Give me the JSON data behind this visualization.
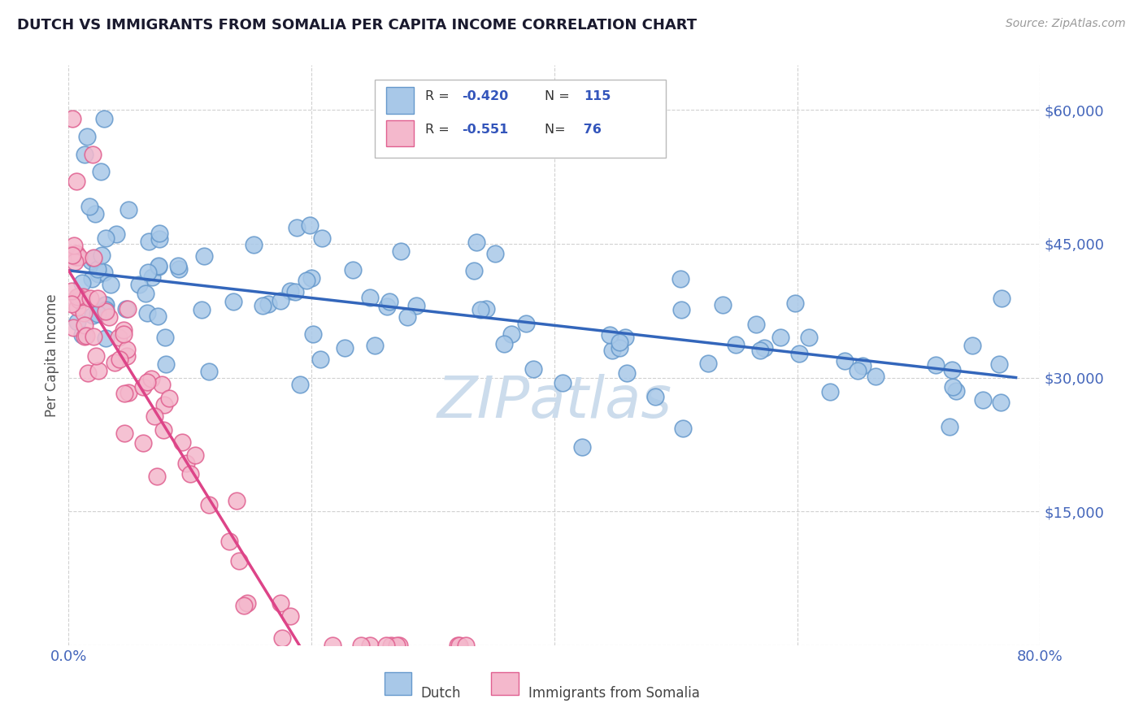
{
  "title": "DUTCH VS IMMIGRANTS FROM SOMALIA PER CAPITA INCOME CORRELATION CHART",
  "source": "Source: ZipAtlas.com",
  "ylabel": "Per Capita Income",
  "y_ticks": [
    0,
    15000,
    30000,
    45000,
    60000
  ],
  "y_tick_labels": [
    "",
    "$15,000",
    "$30,000",
    "$45,000",
    "$60,000"
  ],
  "x_range": [
    0.0,
    80.0
  ],
  "y_range": [
    0,
    65000
  ],
  "blue_color": "#a8c8e8",
  "blue_edge_color": "#6699cc",
  "pink_color": "#f4b8cc",
  "pink_edge_color": "#e06090",
  "blue_line_color": "#3366bb",
  "pink_line_color": "#dd4488",
  "watermark_color": "#ccdcec",
  "blue_trend_x": [
    0,
    78
  ],
  "blue_trend_y": [
    42000,
    30000
  ],
  "pink_trend_x": [
    0,
    19
  ],
  "pink_trend_y": [
    42000,
    0
  ],
  "title_fontsize": 13,
  "source_fontsize": 10,
  "tick_fontsize": 13,
  "ylabel_fontsize": 12,
  "legend_r1": "R = -0.420",
  "legend_n1": "N = 115",
  "legend_r2": "R = -0.551",
  "legend_n2": "N=  76"
}
